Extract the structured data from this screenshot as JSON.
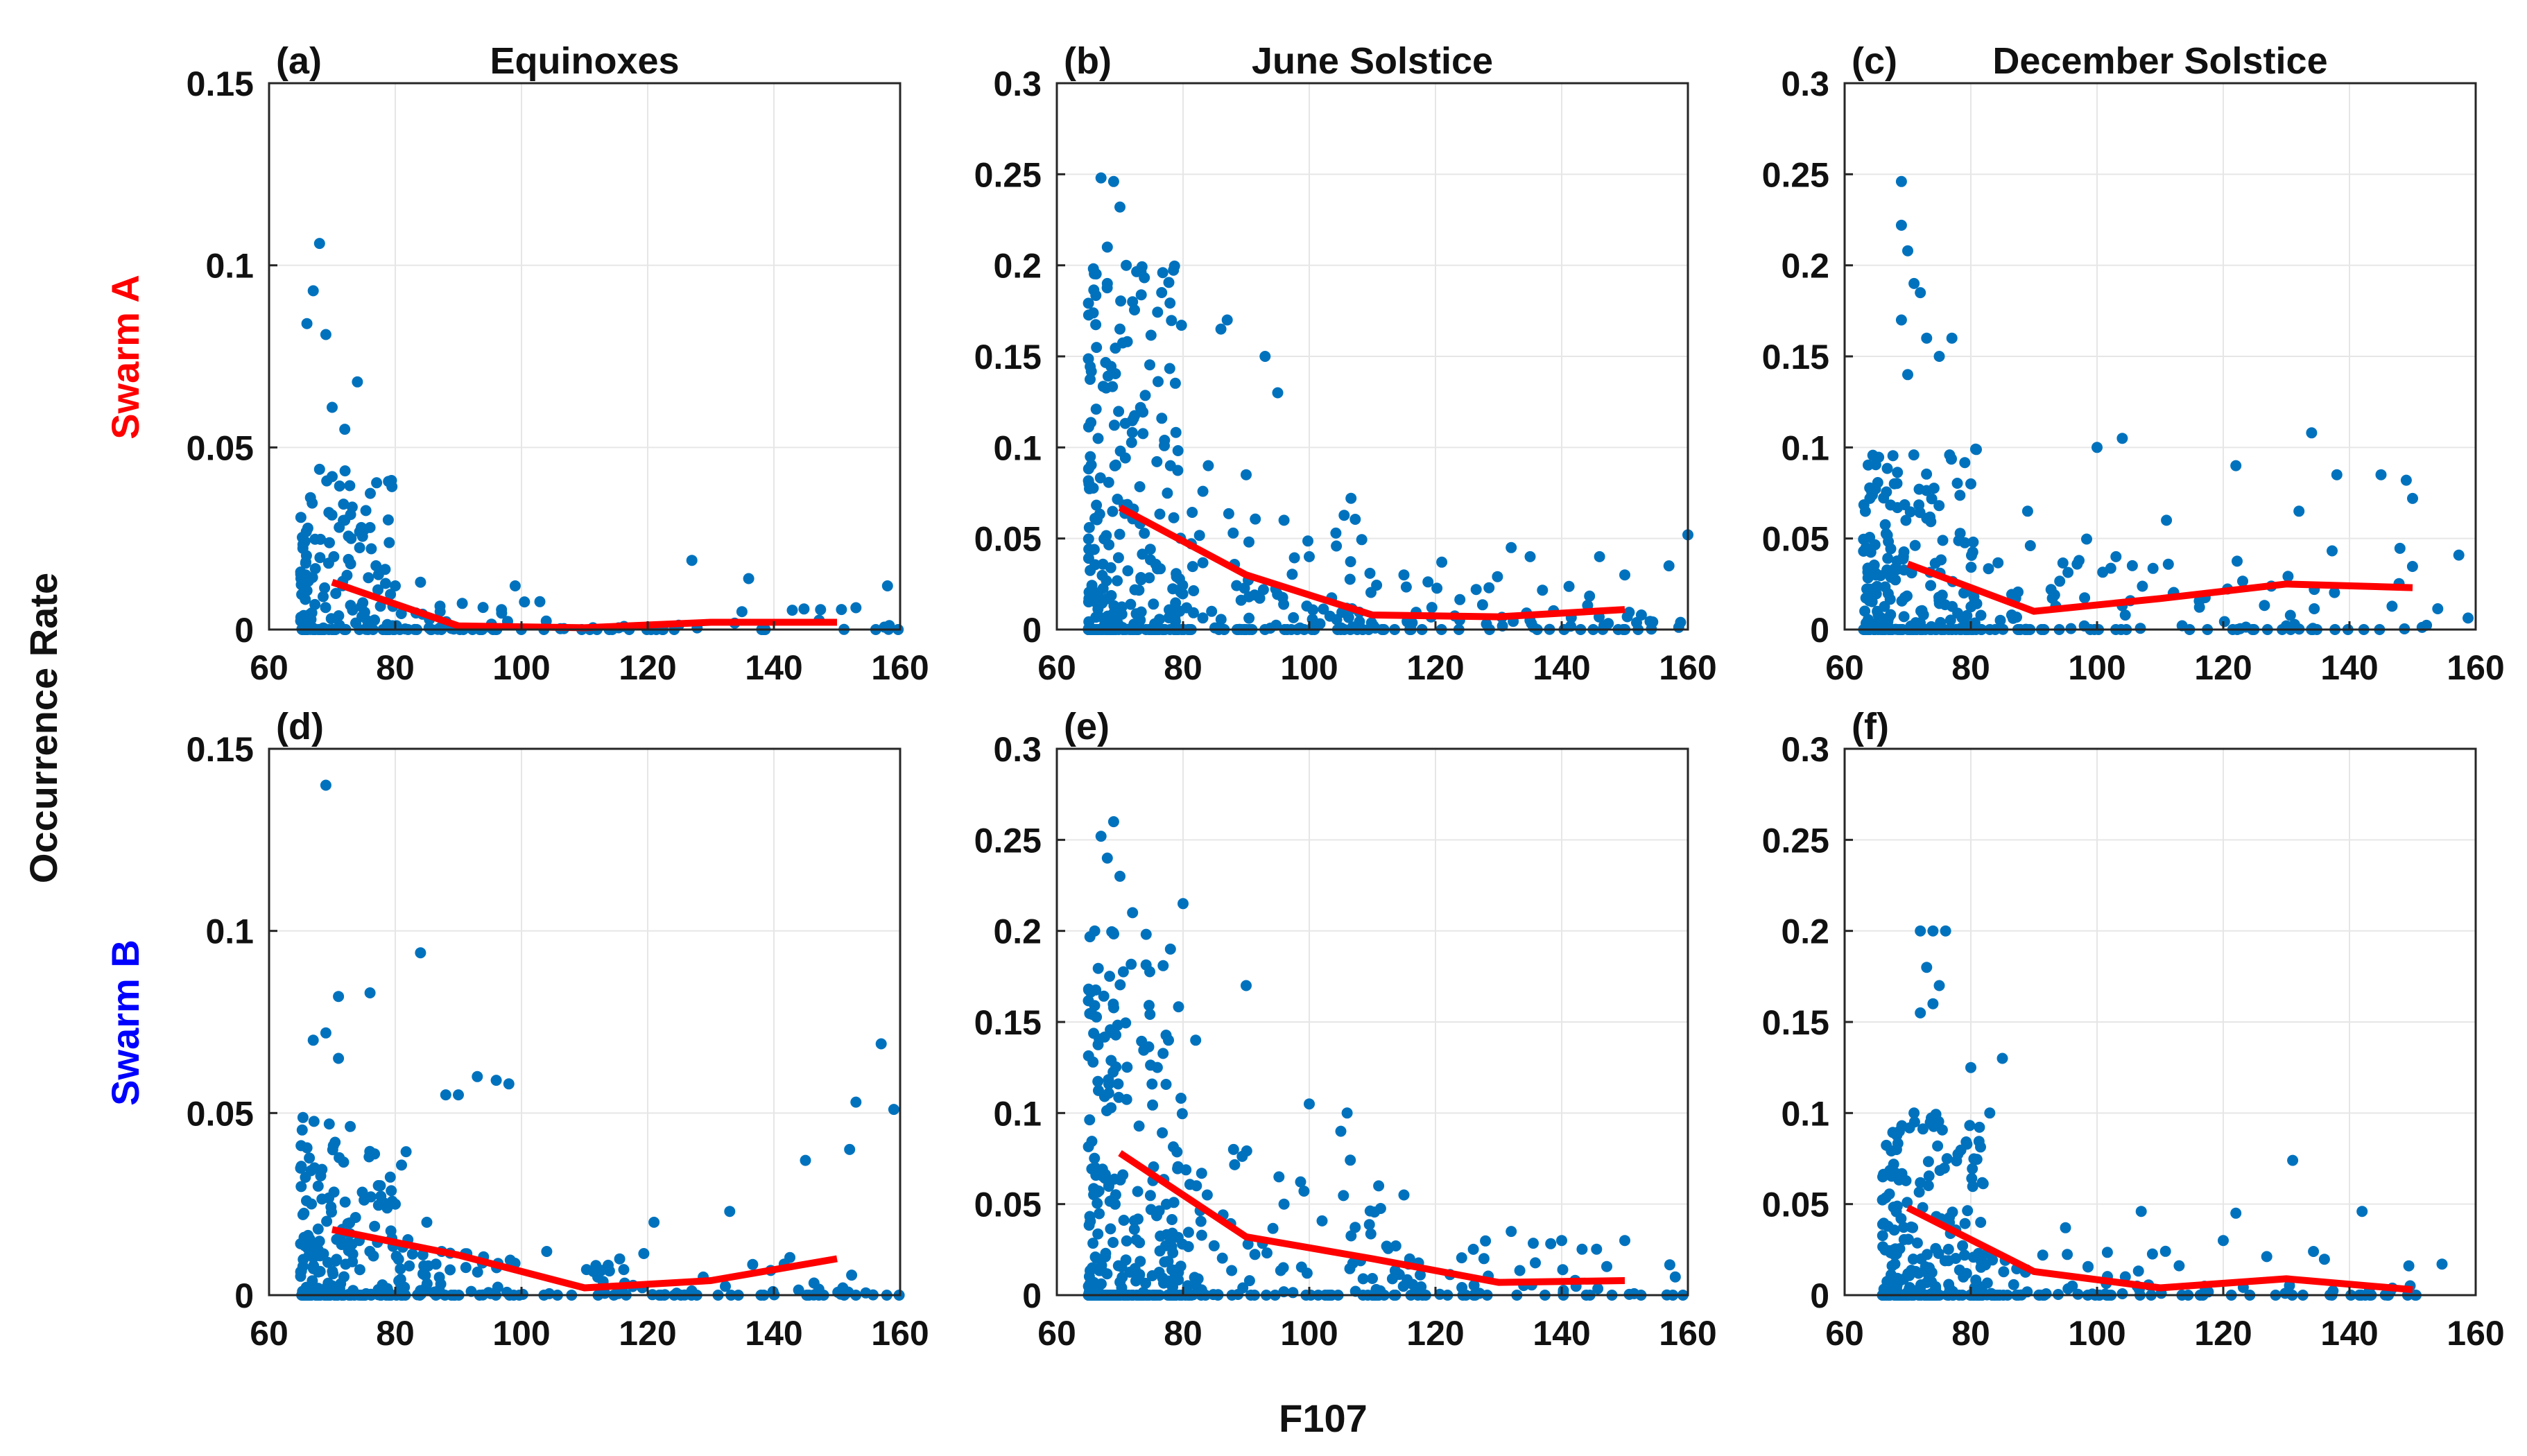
{
  "figure": {
    "ylabel": "Occurrence Rate",
    "xlabel": "F107",
    "row_labels": [
      {
        "prefix": "Swarm ",
        "suffix": "A",
        "color": "#ff0000"
      },
      {
        "prefix": "Swarm ",
        "suffix": "B",
        "color": "#0000ff"
      }
    ],
    "colors": {
      "scatter": "#0072bd",
      "trend": "#ff0000",
      "grid": "#e6e6e6",
      "axes": "#262626"
    }
  },
  "chart_data": [
    {
      "type": "scatter",
      "panel": "(a)",
      "title": "Equinoxes",
      "row": "Swarm A",
      "xlim": [
        60,
        160
      ],
      "ylim": [
        0,
        0.15
      ],
      "xticks": [
        60,
        80,
        100,
        120,
        140,
        160
      ],
      "yticks": [
        0,
        0.05,
        0.1,
        0.15
      ],
      "xticklabels": [
        "60",
        "80",
        "100",
        "120",
        "140",
        "160"
      ],
      "yticklabels": [
        "0",
        "0.05",
        "0.1",
        "0.15"
      ],
      "series": [
        {
          "name": "trend",
          "type": "line",
          "x": [
            70,
            90,
            110,
            130,
            150
          ],
          "y": [
            0.013,
            0.001,
            0.0005,
            0.002,
            0.002
          ]
        }
      ],
      "scatter_samples": [
        [
          66,
          0.084
        ],
        [
          67,
          0.093
        ],
        [
          68,
          0.106
        ],
        [
          69,
          0.081
        ],
        [
          70,
          0.061
        ],
        [
          72,
          0.055
        ],
        [
          74,
          0.068
        ],
        [
          68,
          0.044
        ],
        [
          70,
          0.042
        ],
        [
          72,
          0.03
        ],
        [
          73,
          0.025
        ],
        [
          76,
          0.028
        ],
        [
          80,
          0.012
        ],
        [
          84,
          0.013
        ],
        [
          99,
          0.012
        ],
        [
          127,
          0.019
        ],
        [
          136,
          0.014
        ],
        [
          153,
          0.006
        ],
        [
          158,
          0.012
        ]
      ],
      "scatter_clusters": [
        {
          "x_range": [
            65,
            80
          ],
          "y_range": [
            0,
            0.045
          ],
          "count": 150,
          "skew": 1.8
        },
        {
          "x_range": [
            80,
            160
          ],
          "y_range": [
            0,
            0.008
          ],
          "count": 80,
          "skew": 3
        }
      ]
    },
    {
      "type": "scatter",
      "panel": "(b)",
      "title": "June Solstice",
      "row": "Swarm A",
      "xlim": [
        60,
        160
      ],
      "ylim": [
        0,
        0.3
      ],
      "xticks": [
        60,
        80,
        100,
        120,
        140,
        160
      ],
      "yticks": [
        0,
        0.05,
        0.1,
        0.15,
        0.2,
        0.25,
        0.3
      ],
      "xticklabels": [
        "60",
        "80",
        "100",
        "120",
        "140",
        "160"
      ],
      "yticklabels": [
        "0",
        "0.05",
        "0.1",
        "0.15",
        "0.2",
        "0.25",
        "0.3"
      ],
      "series": [
        {
          "name": "trend",
          "type": "line",
          "x": [
            70,
            90,
            110,
            130,
            150
          ],
          "y": [
            0.067,
            0.03,
            0.008,
            0.007,
            0.011
          ]
        }
      ],
      "scatter_samples": [
        [
          67,
          0.248
        ],
        [
          69,
          0.246
        ],
        [
          68,
          0.21
        ],
        [
          70,
          0.232
        ],
        [
          71,
          0.2
        ],
        [
          72,
          0.18
        ],
        [
          68,
          0.19
        ],
        [
          70,
          0.165
        ],
        [
          87,
          0.17
        ],
        [
          86,
          0.165
        ],
        [
          93,
          0.15
        ],
        [
          95,
          0.13
        ],
        [
          78,
          0.09
        ],
        [
          84,
          0.09
        ],
        [
          90,
          0.085
        ],
        [
          96,
          0.06
        ],
        [
          100,
          0.04
        ],
        [
          115,
          0.03
        ],
        [
          132,
          0.045
        ],
        [
          135,
          0.04
        ],
        [
          146,
          0.04
        ],
        [
          150,
          0.03
        ],
        [
          160,
          0.052
        ],
        [
          157,
          0.035
        ],
        [
          121,
          0.037
        ]
      ],
      "scatter_clusters": [
        {
          "x_range": [
            65,
            80
          ],
          "y_range": [
            0,
            0.2
          ],
          "count": 260,
          "skew": 1.5
        },
        {
          "x_range": [
            78,
            110
          ],
          "y_range": [
            0,
            0.08
          ],
          "count": 100,
          "skew": 1.8
        },
        {
          "x_range": [
            105,
            160
          ],
          "y_range": [
            0,
            0.03
          ],
          "count": 80,
          "skew": 2
        }
      ]
    },
    {
      "type": "scatter",
      "panel": "(c)",
      "title": "December Solstice",
      "row": "Swarm A",
      "xlim": [
        60,
        160
      ],
      "ylim": [
        0,
        0.3
      ],
      "xticks": [
        60,
        80,
        100,
        120,
        140,
        160
      ],
      "yticks": [
        0,
        0.05,
        0.1,
        0.15,
        0.2,
        0.25,
        0.3
      ],
      "xticklabels": [
        "60",
        "80",
        "100",
        "120",
        "140",
        "160"
      ],
      "yticklabels": [
        "0",
        "0.05",
        "0.1",
        "0.15",
        "0.2",
        "0.25",
        "0.3"
      ],
      "series": [
        {
          "name": "trend",
          "type": "line",
          "x": [
            70,
            90,
            110,
            130,
            150
          ],
          "y": [
            0.036,
            0.01,
            0.017,
            0.025,
            0.023
          ]
        }
      ],
      "scatter_samples": [
        [
          69,
          0.246
        ],
        [
          69,
          0.222
        ],
        [
          70,
          0.208
        ],
        [
          71,
          0.19
        ],
        [
          72,
          0.185
        ],
        [
          73,
          0.16
        ],
        [
          75,
          0.15
        ],
        [
          77,
          0.16
        ],
        [
          69,
          0.17
        ],
        [
          70,
          0.14
        ],
        [
          100,
          0.1
        ],
        [
          104,
          0.105
        ],
        [
          122,
          0.09
        ],
        [
          134,
          0.108
        ],
        [
          138,
          0.085
        ],
        [
          145,
          0.085
        ],
        [
          149,
          0.082
        ],
        [
          150,
          0.072
        ],
        [
          132,
          0.065
        ],
        [
          111,
          0.06
        ],
        [
          103,
          0.04
        ],
        [
          89,
          0.065
        ],
        [
          80,
          0.08
        ]
      ],
      "scatter_clusters": [
        {
          "x_range": [
            63,
            82
          ],
          "y_range": [
            0,
            0.1
          ],
          "count": 230,
          "skew": 1.6
        },
        {
          "x_range": [
            80,
            160
          ],
          "y_range": [
            0,
            0.05
          ],
          "count": 110,
          "skew": 1.8
        }
      ]
    },
    {
      "type": "scatter",
      "panel": "(d)",
      "title": "",
      "row": "Swarm B",
      "xlim": [
        60,
        160
      ],
      "ylim": [
        0,
        0.15
      ],
      "xticks": [
        60,
        80,
        100,
        120,
        140,
        160
      ],
      "yticks": [
        0,
        0.05,
        0.1,
        0.15
      ],
      "xticklabels": [
        "60",
        "80",
        "100",
        "120",
        "140",
        "160"
      ],
      "yticklabels": [
        "0",
        "0.05",
        "0.1",
        "0.15"
      ],
      "series": [
        {
          "name": "trend",
          "type": "line",
          "x": [
            70,
            90,
            110,
            130,
            150
          ],
          "y": [
            0.018,
            0.011,
            0.002,
            0.004,
            0.01
          ]
        }
      ],
      "scatter_samples": [
        [
          69,
          0.14
        ],
        [
          84,
          0.094
        ],
        [
          76,
          0.083
        ],
        [
          71,
          0.082
        ],
        [
          67,
          0.07
        ],
        [
          69,
          0.072
        ],
        [
          71,
          0.065
        ],
        [
          93,
          0.06
        ],
        [
          96,
          0.059
        ],
        [
          98,
          0.058
        ],
        [
          88,
          0.055
        ],
        [
          90,
          0.055
        ],
        [
          157,
          0.069
        ],
        [
          153,
          0.053
        ],
        [
          159,
          0.051
        ],
        [
          152,
          0.04
        ],
        [
          145,
          0.037
        ],
        [
          121,
          0.02
        ],
        [
          133,
          0.023
        ],
        [
          104,
          0.012
        ],
        [
          80,
          0.025
        ],
        [
          85,
          0.02
        ]
      ],
      "scatter_clusters": [
        {
          "x_range": [
            65,
            82
          ],
          "y_range": [
            0,
            0.05
          ],
          "count": 200,
          "skew": 1.6
        },
        {
          "x_range": [
            80,
            160
          ],
          "y_range": [
            0,
            0.012
          ],
          "count": 130,
          "skew": 2.2
        }
      ]
    },
    {
      "type": "scatter",
      "panel": "(e)",
      "title": "",
      "row": "Swarm B",
      "xlim": [
        60,
        160
      ],
      "ylim": [
        0,
        0.3
      ],
      "xticks": [
        60,
        80,
        100,
        120,
        140,
        160
      ],
      "yticks": [
        0,
        0.05,
        0.1,
        0.15,
        0.2,
        0.25,
        0.3
      ],
      "xticklabels": [
        "60",
        "80",
        "100",
        "120",
        "140",
        "160"
      ],
      "yticklabels": [
        "0",
        "0.05",
        "0.1",
        "0.15",
        "0.2",
        "0.25",
        "0.3"
      ],
      "series": [
        {
          "name": "trend",
          "type": "line",
          "x": [
            70,
            90,
            110,
            130,
            150
          ],
          "y": [
            0.078,
            0.032,
            0.02,
            0.007,
            0.008
          ]
        }
      ],
      "scatter_samples": [
        [
          67,
          0.252
        ],
        [
          69,
          0.26
        ],
        [
          68,
          0.24
        ],
        [
          70,
          0.23
        ],
        [
          72,
          0.21
        ],
        [
          66,
          0.2
        ],
        [
          80,
          0.215
        ],
        [
          78,
          0.19
        ],
        [
          82,
          0.14
        ],
        [
          90,
          0.17
        ],
        [
          100,
          0.105
        ],
        [
          106,
          0.1
        ],
        [
          105,
          0.09
        ],
        [
          111,
          0.06
        ],
        [
          115,
          0.055
        ],
        [
          132,
          0.035
        ],
        [
          140,
          0.03
        ],
        [
          150,
          0.03
        ],
        [
          158,
          0.01
        ],
        [
          96,
          0.05
        ],
        [
          88,
          0.08
        ]
      ],
      "scatter_clusters": [
        {
          "x_range": [
            65,
            80
          ],
          "y_range": [
            0,
            0.2
          ],
          "count": 260,
          "skew": 1.5
        },
        {
          "x_range": [
            78,
            115
          ],
          "y_range": [
            0,
            0.08
          ],
          "count": 110,
          "skew": 1.8
        },
        {
          "x_range": [
            110,
            160
          ],
          "y_range": [
            0,
            0.03
          ],
          "count": 70,
          "skew": 2
        }
      ]
    },
    {
      "type": "scatter",
      "panel": "(f)",
      "title": "",
      "row": "Swarm B",
      "xlim": [
        60,
        160
      ],
      "ylim": [
        0,
        0.3
      ],
      "xticks": [
        60,
        80,
        100,
        120,
        140,
        160
      ],
      "yticks": [
        0,
        0.05,
        0.1,
        0.15,
        0.2,
        0.25,
        0.3
      ],
      "xticklabels": [
        "60",
        "80",
        "100",
        "120",
        "140",
        "160"
      ],
      "yticklabels": [
        "0",
        "0.05",
        "0.1",
        "0.15",
        "0.2",
        "0.25",
        "0.3"
      ],
      "series": [
        {
          "name": "trend",
          "type": "line",
          "x": [
            70,
            90,
            110,
            130,
            150
          ],
          "y": [
            0.048,
            0.013,
            0.004,
            0.009,
            0.003
          ]
        }
      ],
      "scatter_samples": [
        [
          72,
          0.2
        ],
        [
          74,
          0.2
        ],
        [
          76,
          0.2
        ],
        [
          73,
          0.18
        ],
        [
          75,
          0.17
        ],
        [
          74,
          0.16
        ],
        [
          72,
          0.155
        ],
        [
          80,
          0.125
        ],
        [
          85,
          0.13
        ],
        [
          83,
          0.1
        ],
        [
          71,
          0.1
        ],
        [
          131,
          0.074
        ],
        [
          142,
          0.046
        ],
        [
          122,
          0.045
        ],
        [
          107,
          0.046
        ],
        [
          95,
          0.037
        ],
        [
          120,
          0.03
        ]
      ],
      "scatter_clusters": [
        {
          "x_range": [
            66,
            82
          ],
          "y_range": [
            0,
            0.1
          ],
          "count": 230,
          "skew": 1.6
        },
        {
          "x_range": [
            80,
            160
          ],
          "y_range": [
            0,
            0.025
          ],
          "count": 110,
          "skew": 2
        }
      ]
    }
  ]
}
